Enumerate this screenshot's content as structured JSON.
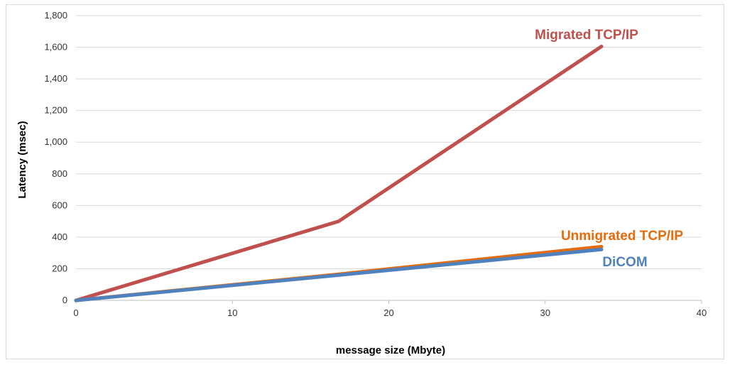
{
  "chart_data": {
    "type": "line",
    "title": "",
    "xlabel": "message size (Mbyte)",
    "ylabel": "Latency (msec)",
    "xlim": [
      0,
      40
    ],
    "ylim": [
      0,
      1800
    ],
    "xticks": [
      0,
      10,
      20,
      30,
      40
    ],
    "yticks": [
      0,
      200,
      400,
      600,
      800,
      1000,
      1200,
      1400,
      1600,
      1800
    ],
    "xtick_labels": [
      "0",
      "10",
      "20",
      "30",
      "40"
    ],
    "ytick_labels": [
      "0",
      "200",
      "400",
      "600",
      "800",
      "1,000",
      "1,200",
      "1,400",
      "1,600",
      "1,800"
    ],
    "grid": "horizontal",
    "legend": "inline labels",
    "series": [
      {
        "name": "Migrated TCP/IP",
        "color": "#c0504d",
        "points": [
          [
            0,
            0
          ],
          [
            16.8,
            500
          ],
          [
            33.6,
            1605
          ]
        ]
      },
      {
        "name": "Unmigrated TCP/IP",
        "color": "#e46c0a",
        "points": [
          [
            0,
            0
          ],
          [
            16.8,
            165
          ],
          [
            33.6,
            340
          ]
        ]
      },
      {
        "name": "DiCOM",
        "color": "#4f81bd",
        "points": [
          [
            0,
            0
          ],
          [
            16.8,
            160
          ],
          [
            33.6,
            322
          ]
        ]
      }
    ]
  }
}
